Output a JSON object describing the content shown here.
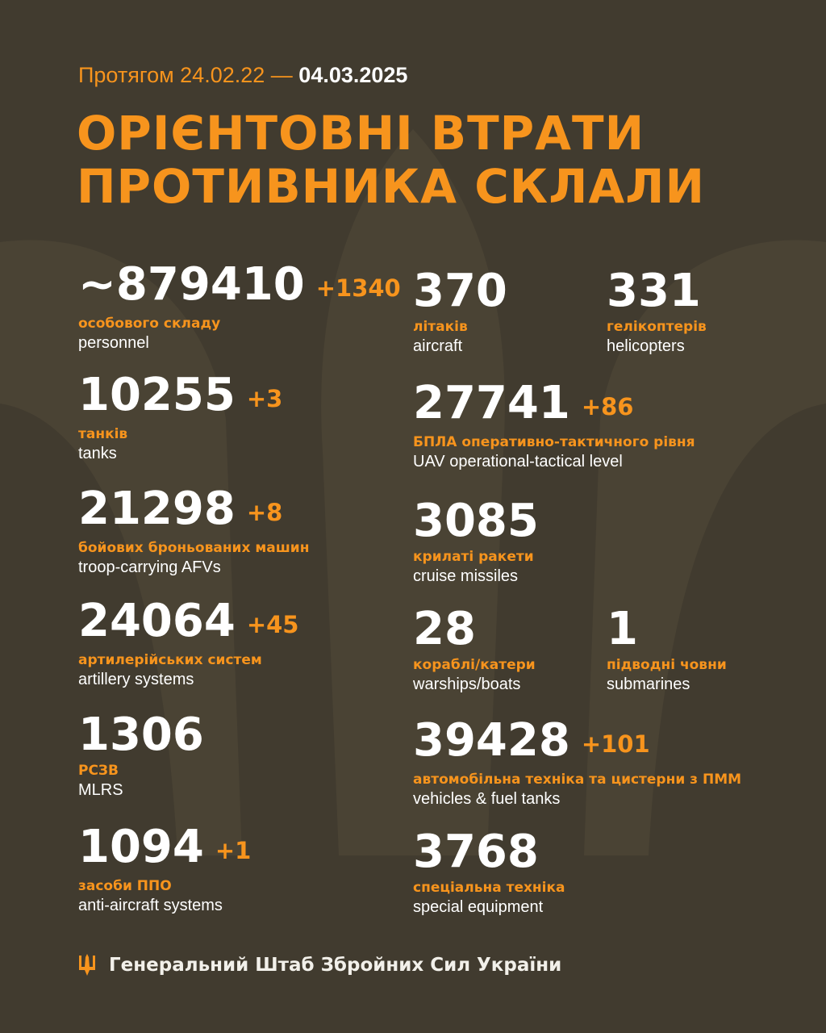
{
  "header": {
    "prefix": "Протягом 24.02.22 —",
    "date": "04.03.2025",
    "title_line1": "ОРІЄНТОВНІ ВТРАТИ",
    "title_line2": "ПРОТИВНИКА СКЛАЛИ"
  },
  "colors": {
    "background": "#413b2f",
    "accent": "#f7941d",
    "text": "#ffffff"
  },
  "left": [
    {
      "value": "~879410",
      "delta": "+1340",
      "ua": "особового складу",
      "en": "personnel"
    },
    {
      "value": "10255",
      "delta": "+3",
      "ua": "танків",
      "en": "tanks"
    },
    {
      "value": "21298",
      "delta": "+8",
      "ua": "бойових броньованих машин",
      "en": "troop-carrying AFVs"
    },
    {
      "value": "24064",
      "delta": "+45",
      "ua": "артилерійських систем",
      "en": "artillery systems"
    },
    {
      "value": "1306",
      "delta": "",
      "ua": "РСЗВ",
      "en": "MLRS"
    },
    {
      "value": "1094",
      "delta": "+1",
      "ua": "засоби ППО",
      "en": "anti-aircraft systems"
    }
  ],
  "right": [
    {
      "value": "370",
      "delta": "",
      "ua": "літаків",
      "en": "aircraft"
    },
    {
      "value": "331",
      "delta": "",
      "ua": "гелікоптерів",
      "en": "helicopters"
    },
    {
      "value": "27741",
      "delta": "+86",
      "ua": "БПЛА оперативно-тактичного рівня",
      "en": "UAV operational-tactical level"
    },
    {
      "value": "3085",
      "delta": "",
      "ua": "крилаті ракети",
      "en": "cruise missiles"
    },
    {
      "value": "28",
      "delta": "",
      "ua": "кораблі/катери",
      "en": "warships/boats"
    },
    {
      "value": "1",
      "delta": "",
      "ua": "підводні човни",
      "en": "submarines"
    },
    {
      "value": "39428",
      "delta": "+101",
      "ua": "автомобільна техніка та цистерни з ПММ",
      "en": "vehicles & fuel tanks"
    },
    {
      "value": "3768",
      "delta": "",
      "ua": "спеціальна техніка",
      "en": "special equipment"
    }
  ],
  "footer": {
    "icon": "trident-icon",
    "text": "Генеральний Штаб Збройних Сил України"
  }
}
